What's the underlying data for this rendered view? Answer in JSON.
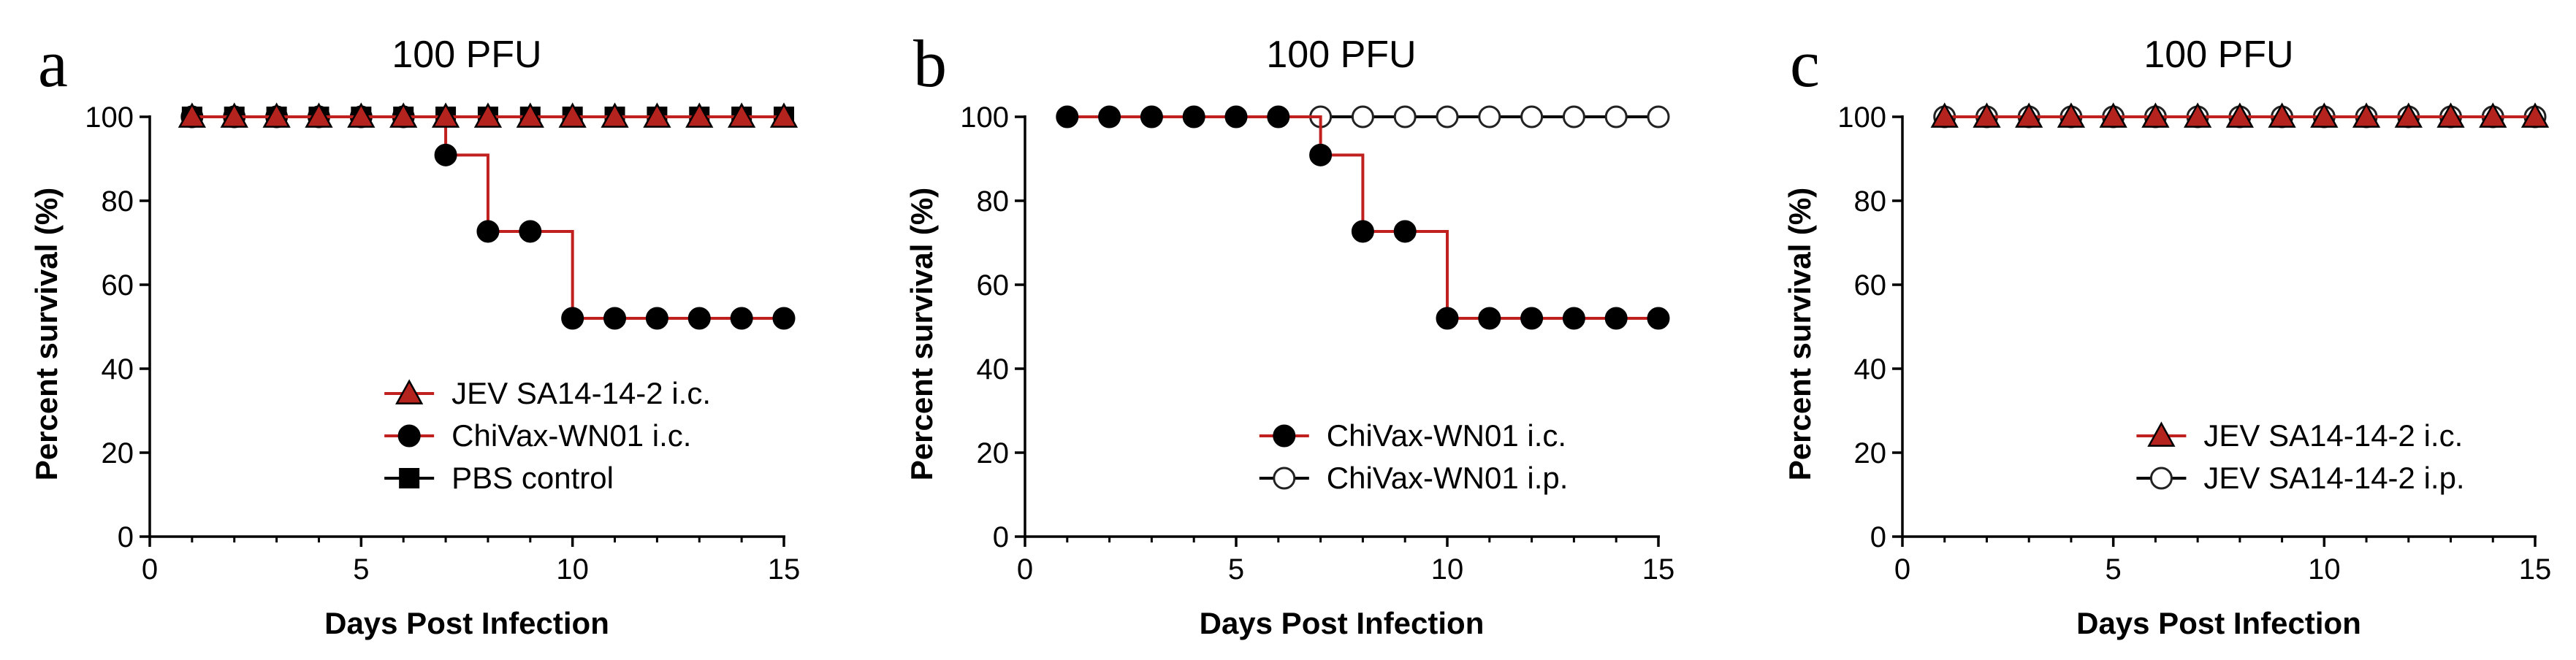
{
  "colors": {
    "red": "#c0201e",
    "black": "#000000",
    "marker_red_fill": "#b5231f",
    "marker_dark_fill": "#000000",
    "marker_open_fill": "#ffffff"
  },
  "chart_data": [
    {
      "type": "line",
      "step": true,
      "panel_label": "a",
      "title": "100 PFU",
      "xlabel": "Days Post Infection",
      "ylabel": "Percent survival (%)",
      "xlim": [
        0,
        15
      ],
      "ylim": [
        0,
        100
      ],
      "xticks": [
        0,
        5,
        10,
        15
      ],
      "yticks": [
        0,
        20,
        40,
        60,
        80,
        100
      ],
      "grid": false,
      "legend_position": "bottom-right",
      "series": [
        {
          "name": "JEV SA14-14-2 i.c.",
          "line_color": "#c0201e",
          "marker": "triangle",
          "marker_fill": "#b5231f",
          "x": [
            1,
            2,
            3,
            4,
            5,
            6,
            7,
            8,
            9,
            10,
            11,
            12,
            13,
            14,
            15
          ],
          "y": [
            100,
            100,
            100,
            100,
            100,
            100,
            100,
            100,
            100,
            100,
            100,
            100,
            100,
            100,
            100
          ]
        },
        {
          "name": "ChiVax-WN01 i.c.",
          "line_color": "#c0201e",
          "marker": "circle",
          "marker_fill": "#000000",
          "x": [
            1,
            2,
            3,
            4,
            5,
            6,
            7,
            8,
            9,
            10,
            11,
            12,
            13,
            14,
            15
          ],
          "y": [
            100,
            100,
            100,
            100,
            100,
            100,
            90.9,
            72.7,
            72.7,
            52,
            52,
            52,
            52,
            52,
            52
          ]
        },
        {
          "name": "PBS control",
          "line_color": "#000000",
          "marker": "square",
          "marker_fill": "#000000",
          "x": [
            1,
            2,
            3,
            4,
            5,
            6,
            7,
            8,
            9,
            10,
            11,
            12,
            13,
            14,
            15
          ],
          "y": [
            100,
            100,
            100,
            100,
            100,
            100,
            100,
            100,
            100,
            100,
            100,
            100,
            100,
            100,
            100
          ]
        }
      ]
    },
    {
      "type": "line",
      "step": true,
      "panel_label": "b",
      "title": "100 PFU",
      "xlabel": "Days Post Infection",
      "ylabel": "Percent survival (%)",
      "xlim": [
        0,
        15
      ],
      "ylim": [
        0,
        100
      ],
      "xticks": [
        0,
        5,
        10,
        15
      ],
      "yticks": [
        0,
        20,
        40,
        60,
        80,
        100
      ],
      "grid": false,
      "legend_position": "bottom-right",
      "series": [
        {
          "name": "ChiVax-WN01 i.c.",
          "line_color": "#c0201e",
          "marker": "circle",
          "marker_fill": "#000000",
          "x": [
            1,
            2,
            3,
            4,
            5,
            6,
            7,
            8,
            9,
            10,
            11,
            12,
            13,
            14,
            15
          ],
          "y": [
            100,
            100,
            100,
            100,
            100,
            100,
            90.9,
            72.7,
            72.7,
            52,
            52,
            52,
            52,
            52,
            52
          ]
        },
        {
          "name": "ChiVax-WN01 i.p.",
          "line_color": "#000000",
          "marker": "open-circle",
          "marker_fill": "#ffffff",
          "x": [
            7,
            8,
            9,
            10,
            11,
            12,
            13,
            14,
            15
          ],
          "y": [
            100,
            100,
            100,
            100,
            100,
            100,
            100,
            100,
            100
          ]
        }
      ]
    },
    {
      "type": "line",
      "step": true,
      "panel_label": "c",
      "title": "100 PFU",
      "xlabel": "Days Post Infection",
      "ylabel": "Percent survival (%)",
      "xlim": [
        0,
        15
      ],
      "ylim": [
        0,
        100
      ],
      "xticks": [
        0,
        5,
        10,
        15
      ],
      "yticks": [
        0,
        20,
        40,
        60,
        80,
        100
      ],
      "grid": false,
      "legend_position": "bottom-right",
      "series": [
        {
          "name": "JEV SA14-14-2 i.c.",
          "line_color": "#c0201e",
          "marker": "triangle",
          "marker_fill": "#b5231f",
          "x": [
            1,
            2,
            3,
            4,
            5,
            6,
            7,
            8,
            9,
            10,
            11,
            12,
            13,
            14,
            15
          ],
          "y": [
            100,
            100,
            100,
            100,
            100,
            100,
            100,
            100,
            100,
            100,
            100,
            100,
            100,
            100,
            100
          ]
        },
        {
          "name": "JEV SA14-14-2 i.p.",
          "line_color": "#000000",
          "marker": "open-circle",
          "marker_fill": "#ffffff",
          "x": [
            1,
            2,
            3,
            4,
            5,
            6,
            7,
            8,
            9,
            10,
            11,
            12,
            13,
            14,
            15
          ],
          "y": [
            100,
            100,
            100,
            100,
            100,
            100,
            100,
            100,
            100,
            100,
            100,
            100,
            100,
            100,
            100
          ]
        }
      ]
    }
  ]
}
